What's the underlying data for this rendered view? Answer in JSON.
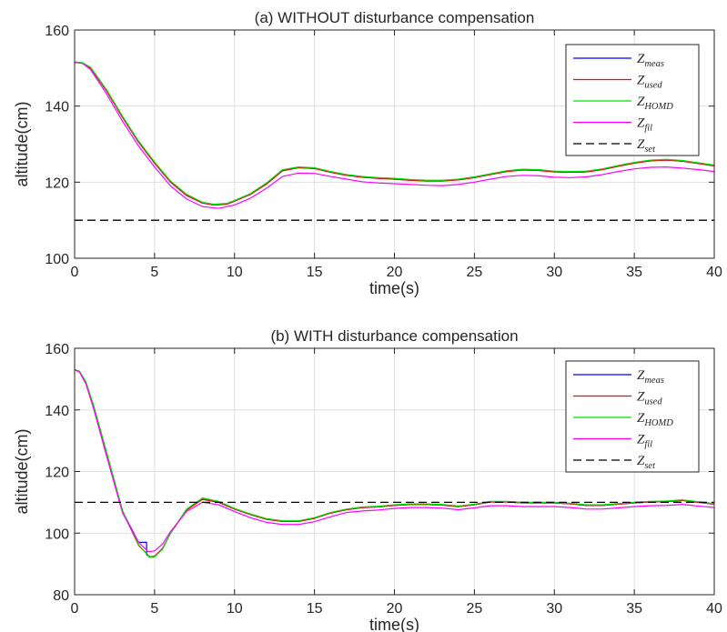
{
  "chart_data": [
    {
      "type": "line",
      "title": "(a) WITHOUT disturbance compensation",
      "xlabel": "time(s)",
      "ylabel": "altitude(cm)",
      "xlim": [
        0,
        40
      ],
      "ylim": [
        100,
        160
      ],
      "xticks": [
        0,
        5,
        10,
        15,
        20,
        25,
        30,
        35,
        40
      ],
      "yticks": [
        100,
        120,
        140,
        160
      ],
      "grid": true,
      "legend_position": "top-right",
      "series": [
        {
          "name": "Z",
          "sub": "meas",
          "color": "#0000ff",
          "dash": "solid",
          "x": [
            0,
            0.5,
            1,
            2,
            3,
            4,
            5,
            6,
            7,
            8,
            8.7,
            9.5,
            10,
            11,
            12,
            13,
            14,
            15,
            16,
            17,
            18,
            19,
            20,
            21,
            22,
            23,
            24,
            25,
            26,
            27,
            28,
            29,
            30,
            31,
            32,
            33,
            34,
            35,
            36,
            37,
            38,
            39,
            40
          ],
          "y": [
            151.5,
            151.3,
            150,
            144,
            137,
            130.5,
            125,
            120,
            116.5,
            114.5,
            114,
            114.2,
            115,
            116.8,
            119.5,
            123,
            123.8,
            123.6,
            122.6,
            121.8,
            121.3,
            121,
            120.8,
            120.5,
            120.3,
            120.3,
            120.6,
            121.2,
            122,
            122.8,
            123.2,
            123.1,
            122.7,
            122.6,
            122.7,
            123.3,
            124.2,
            125,
            125.6,
            125.8,
            125.5,
            124.9,
            124.3
          ]
        },
        {
          "name": "Z",
          "sub": "used",
          "color": "#ff0000",
          "dash": "solid",
          "x": [
            0,
            0.5,
            1,
            2,
            3,
            4,
            5,
            6,
            7,
            8,
            8.7,
            9.5,
            10,
            11,
            12,
            13,
            14,
            15,
            16,
            17,
            18,
            19,
            20,
            21,
            22,
            23,
            24,
            25,
            26,
            27,
            28,
            29,
            30,
            31,
            32,
            33,
            34,
            35,
            36,
            37,
            38,
            39,
            40
          ],
          "y": [
            151.5,
            151.3,
            150,
            144,
            137,
            130.5,
            125,
            120,
            116.5,
            114.5,
            114,
            114.2,
            115,
            116.8,
            119.5,
            123,
            123.8,
            123.6,
            122.6,
            121.8,
            121.3,
            121,
            120.8,
            120.5,
            120.3,
            120.3,
            120.6,
            121.2,
            122,
            122.8,
            123.2,
            123.1,
            122.7,
            122.6,
            122.7,
            123.3,
            124.2,
            125,
            125.6,
            125.8,
            125.5,
            124.9,
            124.3
          ]
        },
        {
          "name": "Z",
          "sub": "HOMD",
          "color": "#00dd00",
          "dash": "solid",
          "x": [
            0,
            0.5,
            1,
            2,
            3,
            4,
            5,
            6,
            7,
            8,
            8.7,
            9.5,
            10,
            11,
            12,
            13,
            14,
            15,
            16,
            17,
            18,
            19,
            20,
            21,
            22,
            23,
            24,
            25,
            26,
            27,
            28,
            29,
            30,
            31,
            32,
            33,
            34,
            35,
            36,
            37,
            38,
            39,
            40
          ],
          "y": [
            151.6,
            151.4,
            150.2,
            144.3,
            137.3,
            130.8,
            125.3,
            120.3,
            116.8,
            114.7,
            114.2,
            114.4,
            115.2,
            117,
            119.8,
            123.3,
            124,
            123.8,
            122.8,
            122,
            121.5,
            121.2,
            121,
            120.7,
            120.5,
            120.5,
            120.8,
            121.4,
            122.2,
            123,
            123.4,
            123.3,
            122.9,
            122.8,
            122.9,
            123.5,
            124.4,
            125.2,
            125.8,
            126,
            125.7,
            125.1,
            124.5
          ]
        },
        {
          "name": "Z",
          "sub": "fil",
          "color": "#ff00ff",
          "dash": "solid",
          "x": [
            0,
            0.5,
            1,
            2,
            3,
            4,
            5,
            6,
            7,
            8,
            9,
            10,
            11,
            12,
            13,
            14,
            15,
            16,
            17,
            18,
            19,
            20,
            21,
            22,
            23,
            24,
            25,
            26,
            27,
            28,
            29,
            30,
            31,
            32,
            33,
            34,
            35,
            36,
            37,
            38,
            39,
            40
          ],
          "y": [
            151.5,
            151.2,
            149.6,
            143.2,
            136,
            129.5,
            124,
            119,
            115.6,
            113.6,
            113.1,
            114,
            115.8,
            118.4,
            121.5,
            122.4,
            122.3,
            121.5,
            120.8,
            120.1,
            119.8,
            119.6,
            119.4,
            119.2,
            119.1,
            119.4,
            120,
            120.8,
            121.5,
            121.8,
            121.7,
            121.3,
            121.2,
            121.4,
            122,
            122.8,
            123.5,
            123.9,
            124,
            123.7,
            123.3,
            122.8
          ]
        },
        {
          "name": "Z",
          "sub": "set",
          "color": "#000000",
          "dash": "dashed",
          "x": [
            0,
            40
          ],
          "y": [
            110,
            110
          ]
        }
      ]
    },
    {
      "type": "line",
      "title": "(b) WITH disturbance compensation",
      "xlabel": "time(s)",
      "ylabel": "altitude(cm)",
      "xlim": [
        0,
        40
      ],
      "ylim": [
        80,
        160
      ],
      "xticks": [
        0,
        5,
        10,
        15,
        20,
        25,
        30,
        35,
        40
      ],
      "yticks": [
        80,
        100,
        120,
        140,
        160
      ],
      "grid": true,
      "legend_position": "top-right",
      "series": [
        {
          "name": "Z",
          "sub": "meas",
          "color": "#0000ff",
          "dash": "solid",
          "x": [
            0,
            0.3,
            0.7,
            1.2,
            2,
            3,
            4,
            4.5,
            4.5,
            4.7,
            5,
            5.5,
            6,
            7,
            8,
            9,
            10,
            11,
            12,
            13,
            14,
            15,
            16,
            17,
            18,
            19,
            20,
            21,
            22,
            23,
            24,
            25,
            26,
            27,
            28,
            29,
            30,
            31,
            32,
            33,
            34,
            35,
            36,
            37,
            38,
            39,
            40
          ],
          "y": [
            153,
            152.5,
            149,
            141,
            126,
            107,
            97,
            97,
            93,
            92.3,
            92.5,
            95,
            100,
            107.5,
            111,
            110,
            107.8,
            106,
            104.5,
            103.8,
            103.8,
            104.8,
            106.5,
            107.6,
            108.3,
            108.5,
            109,
            109.3,
            109.3,
            109.1,
            108.6,
            109.2,
            110.1,
            110.1,
            109.8,
            109.8,
            109.8,
            109.5,
            109,
            109,
            109.4,
            109.8,
            110.1,
            110.2,
            110.6,
            110,
            109.4
          ]
        },
        {
          "name": "Z",
          "sub": "used",
          "color": "#ff0000",
          "dash": "solid",
          "x": [
            0,
            0.3,
            0.7,
            1.2,
            2,
            3,
            4,
            4.7,
            5,
            5.5,
            6,
            7,
            8,
            9,
            10,
            11,
            12,
            13,
            14,
            15,
            16,
            17,
            18,
            19,
            20,
            21,
            22,
            23,
            24,
            25,
            26,
            27,
            28,
            29,
            30,
            31,
            32,
            33,
            34,
            35,
            36,
            37,
            38,
            39,
            40
          ],
          "y": [
            153,
            152.5,
            149,
            141,
            126,
            107,
            96,
            92.3,
            92.5,
            95,
            100,
            107.5,
            111,
            110,
            107.8,
            106,
            104.5,
            103.8,
            103.8,
            104.8,
            106.5,
            107.6,
            108.3,
            108.5,
            109,
            109.3,
            109.3,
            109.1,
            108.6,
            109.2,
            110.1,
            110.1,
            109.8,
            109.8,
            109.8,
            109.5,
            109,
            109,
            109.4,
            109.8,
            110.1,
            110.2,
            110.6,
            110,
            109.4
          ]
        },
        {
          "name": "Z",
          "sub": "HOMD",
          "color": "#00dd00",
          "dash": "solid",
          "x": [
            0,
            0.3,
            0.7,
            1.2,
            2,
            3,
            4,
            4.7,
            5,
            5.5,
            6,
            7,
            8,
            9,
            10,
            11,
            12,
            13,
            14,
            15,
            16,
            17,
            18,
            19,
            20,
            21,
            22,
            23,
            24,
            25,
            26,
            27,
            28,
            29,
            30,
            31,
            32,
            33,
            34,
            35,
            36,
            37,
            38,
            39,
            40
          ],
          "y": [
            153.1,
            152.6,
            149.2,
            141.3,
            126.3,
            107.3,
            96.2,
            92.1,
            92.3,
            94.8,
            100,
            107.8,
            111.4,
            110.3,
            108,
            106.2,
            104.7,
            104,
            104,
            105,
            106.7,
            107.8,
            108.5,
            108.7,
            109.2,
            109.5,
            109.5,
            109.3,
            108.8,
            109.4,
            110.3,
            110.3,
            110,
            110,
            110,
            109.7,
            109.2,
            109.2,
            109.6,
            110,
            110.3,
            110.4,
            110.8,
            110.2,
            109.6
          ]
        },
        {
          "name": "Z",
          "sub": "fil",
          "color": "#ff00ff",
          "dash": "solid",
          "x": [
            0,
            0.3,
            0.7,
            1.2,
            2,
            3,
            4,
            4.6,
            5,
            5.5,
            6,
            7,
            8,
            9,
            10,
            11,
            12,
            13,
            14,
            15,
            16,
            17,
            18,
            19,
            20,
            21,
            22,
            23,
            24,
            25,
            26,
            27,
            28,
            29,
            30,
            31,
            32,
            33,
            34,
            35,
            36,
            37,
            38,
            39,
            40
          ],
          "y": [
            153,
            152.3,
            148.5,
            140.2,
            125,
            106.5,
            97,
            94,
            94.2,
            96.5,
            100.5,
            107,
            110,
            109.2,
            107,
            105,
            103.5,
            102.8,
            102.8,
            103.7,
            105.3,
            106.7,
            107.2,
            107.5,
            108,
            108.3,
            108.3,
            108.1,
            107.6,
            108.2,
            108.9,
            108.9,
            108.6,
            108.6,
            108.6,
            108.3,
            107.8,
            107.8,
            108.2,
            108.6,
            108.9,
            109,
            109.3,
            108.8,
            108.3
          ]
        },
        {
          "name": "Z",
          "sub": "set",
          "color": "#000000",
          "dash": "dashed",
          "x": [
            0,
            40
          ],
          "y": [
            110,
            110
          ]
        }
      ]
    }
  ]
}
